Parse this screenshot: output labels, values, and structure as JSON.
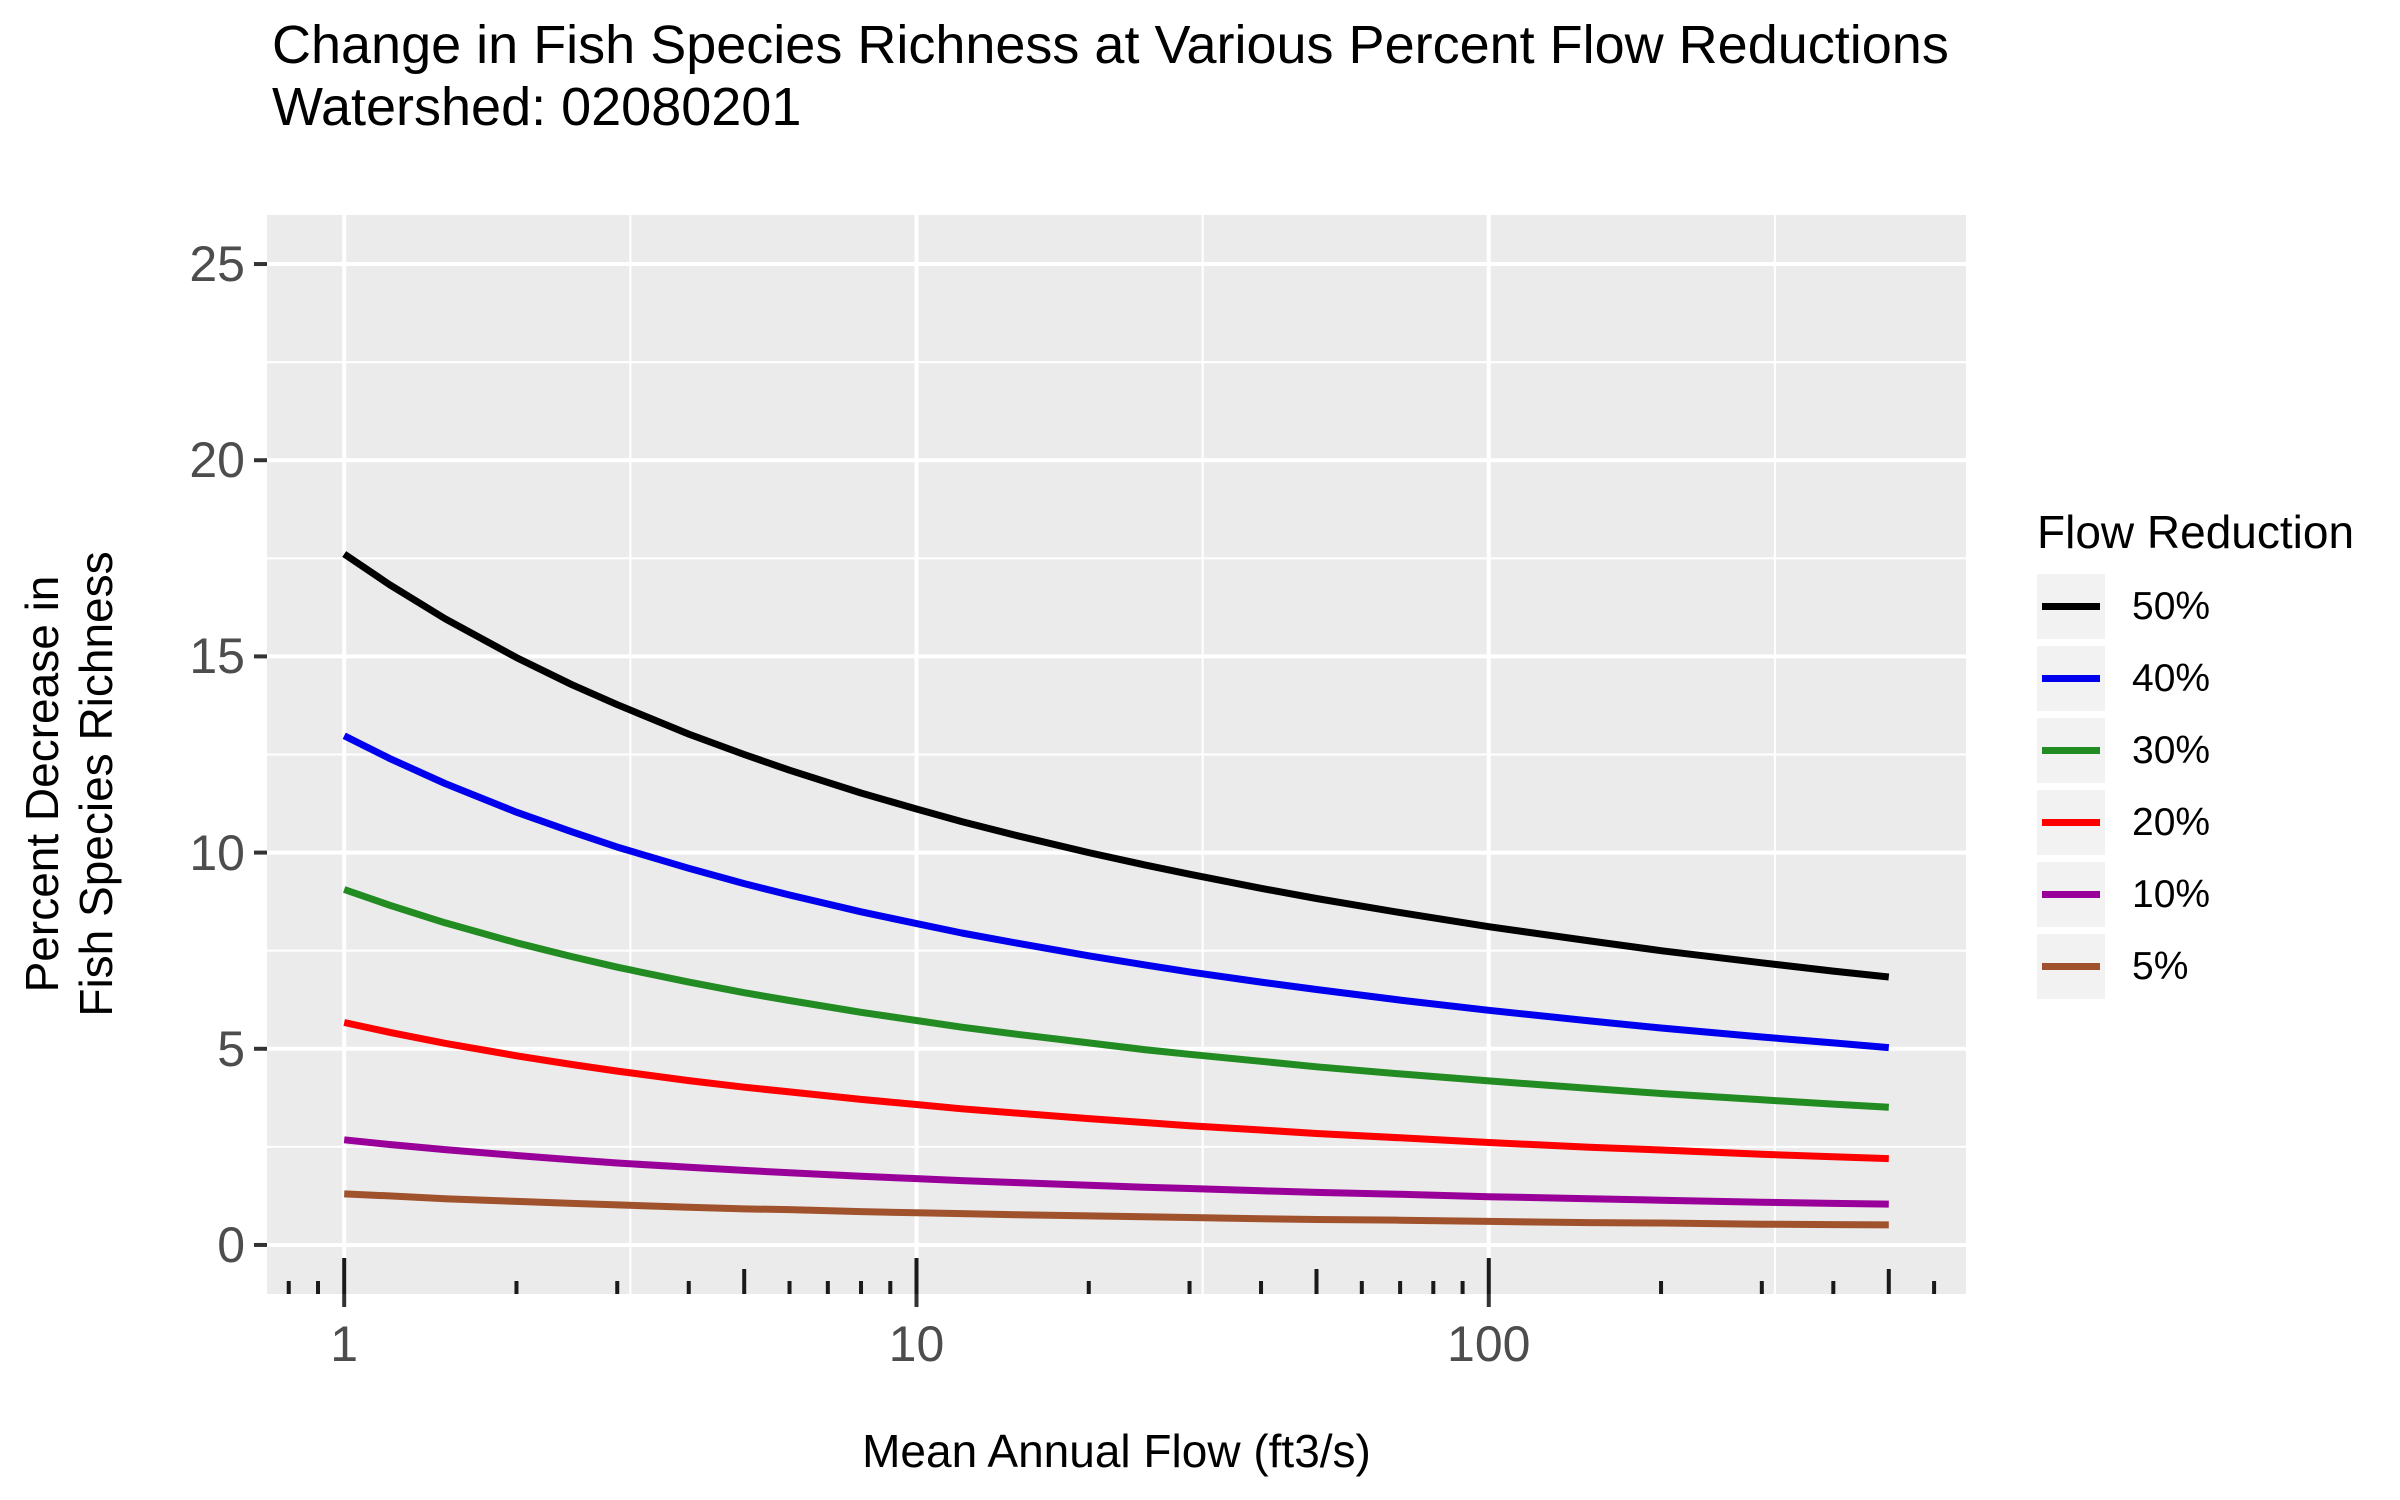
{
  "title": {
    "line1": "Change in Fish Species Richness at Various Percent Flow Reductions",
    "line2": "Watershed: 02080201"
  },
  "colors": {
    "panel_background": "#EBEBEB",
    "gridline": "#FFFFFF",
    "tick_label": "#4D4D4D",
    "tick_mark": "#333333",
    "log_tick": "#1A1A1A",
    "legend_key_background": "#F2F2F2",
    "text": "#000000"
  },
  "chart_data": {
    "type": "line",
    "title": "Change in Fish Species Richness at Various Percent Flow Reductions",
    "subtitle": "Watershed: 02080201",
    "xlabel": "Mean Annual Flow (ft3/s)",
    "ylabel_line1": "Percent Decrease in",
    "ylabel_line2": "Fish Species Richness",
    "x_scale": "log10",
    "x_ticks": [
      1,
      10,
      100
    ],
    "y_ticks": [
      0,
      5,
      10,
      15,
      20,
      25
    ],
    "x_range_data": [
      1,
      500
    ],
    "x_log_range_displayed": [
      -0.1349,
      2.8339
    ],
    "y_range_displayed": [
      -1.25,
      26.25
    ],
    "grid": "major and minor white gridlines on gray panel, log minor ticks inside bottom edge",
    "legend": {
      "title": "Flow Reduction",
      "position": "right"
    },
    "x": [
      1,
      1.2,
      1.5,
      2,
      2.5,
      3,
      4,
      5,
      6,
      8,
      10,
      12,
      15,
      20,
      25,
      30,
      40,
      50,
      70,
      100,
      150,
      200,
      300,
      400,
      500
    ],
    "series": [
      {
        "name": "50%",
        "color": "#000000",
        "values": [
          17.61,
          16.83,
          15.96,
          14.97,
          14.28,
          13.77,
          13.02,
          12.5,
          12.1,
          11.52,
          11.11,
          10.79,
          10.43,
          10.0,
          9.69,
          9.45,
          9.09,
          8.83,
          8.47,
          8.11,
          7.75,
          7.5,
          7.19,
          6.98,
          6.83
        ]
      },
      {
        "name": "40%",
        "color": "#0000EE",
        "values": [
          12.98,
          12.4,
          11.76,
          11.03,
          10.53,
          10.14,
          9.6,
          9.21,
          8.92,
          8.49,
          8.19,
          7.95,
          7.69,
          7.37,
          7.14,
          6.96,
          6.7,
          6.51,
          6.24,
          5.98,
          5.71,
          5.53,
          5.3,
          5.15,
          5.03
        ]
      },
      {
        "name": "30%",
        "color": "#228B22",
        "values": [
          9.06,
          8.66,
          8.21,
          7.7,
          7.35,
          7.08,
          6.7,
          6.43,
          6.23,
          5.93,
          5.72,
          5.55,
          5.37,
          5.15,
          4.98,
          4.86,
          4.68,
          4.54,
          4.36,
          4.18,
          3.99,
          3.86,
          3.7,
          3.59,
          3.51
        ]
      },
      {
        "name": "20%",
        "color": "#FF0000",
        "values": [
          5.67,
          5.42,
          5.14,
          4.82,
          4.6,
          4.43,
          4.19,
          4.02,
          3.9,
          3.71,
          3.58,
          3.47,
          3.36,
          3.22,
          3.12,
          3.04,
          2.93,
          2.84,
          2.73,
          2.61,
          2.49,
          2.42,
          2.31,
          2.25,
          2.2
        ]
      },
      {
        "name": "10%",
        "color": "#990099",
        "values": [
          2.68,
          2.56,
          2.43,
          2.28,
          2.17,
          2.09,
          1.98,
          1.9,
          1.84,
          1.75,
          1.69,
          1.64,
          1.59,
          1.52,
          1.47,
          1.44,
          1.38,
          1.34,
          1.29,
          1.23,
          1.18,
          1.14,
          1.09,
          1.06,
          1.04
        ]
      },
      {
        "name": "5%",
        "color": "#A0522D",
        "values": [
          1.3,
          1.25,
          1.18,
          1.11,
          1.06,
          1.02,
          0.96,
          0.92,
          0.9,
          0.85,
          0.82,
          0.8,
          0.77,
          0.74,
          0.72,
          0.7,
          0.67,
          0.65,
          0.63,
          0.6,
          0.57,
          0.56,
          0.53,
          0.52,
          0.51
        ]
      }
    ]
  }
}
